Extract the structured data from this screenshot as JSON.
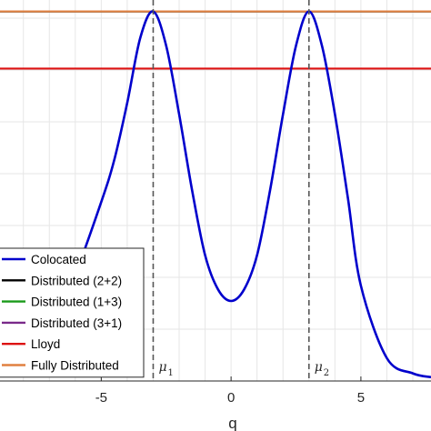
{
  "chart_data": {
    "type": "line",
    "title": "",
    "xlabel": "q",
    "ylabel": "",
    "xlim": [
      -8.9,
      7.7
    ],
    "ylim": [
      0,
      1
    ],
    "grid": true,
    "legend_placement": "lower-left",
    "x_ticks": [
      -5,
      0,
      5
    ],
    "x_tick_labels": [
      "-5",
      "0",
      "5"
    ],
    "series": [
      {
        "name": "Colocated",
        "color": "#0000cc",
        "peaks": [
          -3,
          3
        ],
        "x": [
          -8.9,
          -8,
          -7,
          -6,
          -5,
          -4.5,
          -4,
          -3.5,
          -3,
          -2.5,
          -2,
          -1.5,
          -1,
          -0.5,
          0,
          0.5,
          1,
          1.5,
          2,
          2.5,
          3,
          3.5,
          4,
          4.5,
          5,
          6,
          7,
          7.7
        ],
        "y": [
          0.02,
          0.05,
          0.13,
          0.28,
          0.47,
          0.58,
          0.73,
          0.9,
          0.97,
          0.88,
          0.7,
          0.5,
          0.33,
          0.24,
          0.21,
          0.24,
          0.33,
          0.5,
          0.7,
          0.88,
          0.97,
          0.88,
          0.7,
          0.48,
          0.25,
          0.06,
          0.02,
          0.01
        ]
      },
      {
        "name": "Distributed (2+2)",
        "color": "#000000",
        "value": 0.97
      },
      {
        "name": "Distributed (1+3)",
        "color": "#1a9a1a",
        "value": 0.97
      },
      {
        "name": "Distributed (3+1)",
        "color": "#7a2a8a",
        "value": 0.97
      },
      {
        "name": "Lloyd",
        "color": "#dd1111",
        "value": 0.82
      },
      {
        "name": "Fully Distributed",
        "color": "#e08040",
        "value": 0.97
      }
    ],
    "annotations": [
      {
        "text": "μ",
        "sub": "1",
        "x": -3
      },
      {
        "text": "μ",
        "sub": "2",
        "x": 3
      }
    ]
  }
}
